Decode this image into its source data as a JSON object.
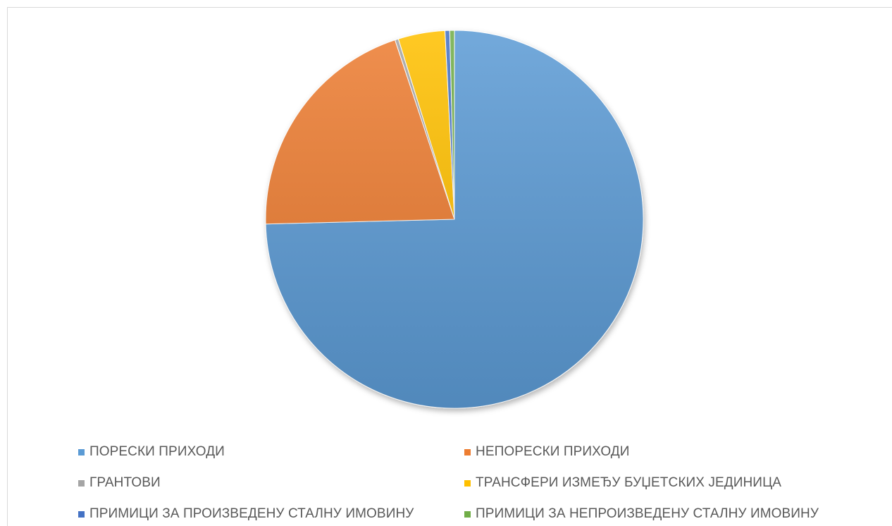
{
  "chart_data": {
    "type": "pie",
    "title": "",
    "start_angle_deg": 0,
    "direction": "clockwise",
    "legend_position": "bottom",
    "slices": [
      {
        "label": "ПОРЕСКИ ПРИХОДИ",
        "value": 74.6,
        "color": "#5b9bd5"
      },
      {
        "label": "НЕПОРЕСКИ ПРИХОДИ",
        "value": 20.3,
        "color": "#ed7d31"
      },
      {
        "label": "ГРАНТОВИ",
        "value": 0.3,
        "color": "#a5a5a5"
      },
      {
        "label": "ТРАНСФЕРИ ИЗМЕЂУ БУЏЕТСКИХ ЈЕДИНИЦА",
        "value": 4.0,
        "color": "#ffc000"
      },
      {
        "label": "ПРИМИЦИ ЗА ПРОИЗВЕДЕНУ СТАЛНУ ИМОВИНУ",
        "value": 0.4,
        "color": "#4472c4"
      },
      {
        "label": "ПРИМИЦИ ЗА НЕПРОИЗВЕДЕНУ СТАЛНУ ИМОВИНУ",
        "value": 0.4,
        "color": "#70ad47"
      }
    ]
  }
}
